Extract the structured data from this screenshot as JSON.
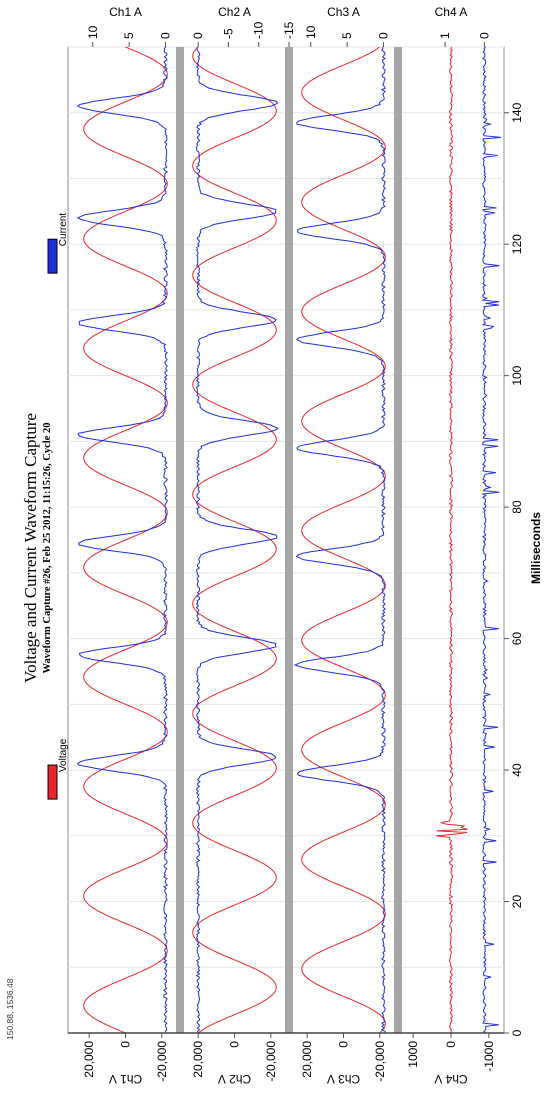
{
  "chart_data": {
    "type": "line",
    "title": "Voltage and Current Waveform Capture",
    "subtitle": "Waveform Capture #26, Feb 25 2012, 11:15:26,  Cycle 20",
    "corner_text": "150.88, 1536.48",
    "xlabel": "Milliseconds",
    "xlim": [
      0,
      150
    ],
    "x_ticks": [
      0,
      20,
      40,
      60,
      80,
      100,
      120,
      140
    ],
    "legend": {
      "placement": "top",
      "items": [
        {
          "name": "Voltage",
          "color": "#e8262c",
          "x_ms": 40
        },
        {
          "name": "Current",
          "color": "#1f2fd8",
          "x_ms": 120
        }
      ]
    },
    "colors": {
      "voltage": "#e8262c",
      "current": "#1f2fd8",
      "grid": "#e6e6e6",
      "separator": "#a6a6a6"
    },
    "panels": [
      {
        "name": "Ch1",
        "voltage_label": "Ch1 V",
        "current_label": "Ch1 A",
        "voltage_ylim": [
          -30000,
          30000
        ],
        "voltage_ticks": [
          20000,
          0,
          -20000
        ],
        "voltage_tick_labels": [
          "20,000",
          "0",
          "-20,000"
        ],
        "current_ylim": [
          -2,
          13
        ],
        "current_ticks": [
          10,
          5,
          0
        ],
        "current_tick_labels": [
          "10",
          "5",
          "0"
        ],
        "voltage_amplitude": 23000,
        "current_baseline": 0,
        "current_pulse_peak": 12,
        "current_pulse_centers": [
          41,
          57.5,
          74.5,
          91,
          108,
          124,
          141
        ]
      },
      {
        "name": "Ch2",
        "voltage_label": "Ch2 V",
        "current_label": "Ch2 A",
        "voltage_ylim": [
          -30000,
          30000
        ],
        "voltage_ticks": [
          20000,
          0,
          -20000
        ],
        "voltage_tick_labels": [
          "20,000",
          "0",
          "-20,000"
        ],
        "current_ylim": [
          -15,
          3
        ],
        "current_ticks": [
          0,
          -5,
          -10,
          -15
        ],
        "current_tick_labels": [
          "0",
          "-5",
          "-10",
          "-15"
        ],
        "voltage_amplitude": 23000,
        "current_baseline": 0,
        "current_pulse_peak": -13,
        "current_pulse_centers": [
          42,
          59,
          75.5,
          92,
          108.5,
          125,
          141.5
        ]
      },
      {
        "name": "Ch3",
        "voltage_label": "Ch3 V",
        "current_label": "Ch3 A",
        "voltage_ylim": [
          -30000,
          30000
        ],
        "voltage_ticks": [
          20000,
          0,
          -20000
        ],
        "voltage_tick_labels": [
          "20,000",
          "0",
          "-20,000"
        ],
        "current_ylim": [
          -2,
          13
        ],
        "current_ticks": [
          10,
          5,
          0
        ],
        "current_tick_labels": [
          "10",
          "5",
          "0"
        ],
        "voltage_amplitude": 23000,
        "current_baseline": 0,
        "current_pulse_peak": 12,
        "current_pulse_centers": [
          39.5,
          56,
          72.5,
          89,
          105.5,
          122,
          138.5
        ]
      },
      {
        "name": "Ch4",
        "voltage_label": "Ch4 V",
        "current_label": "Ch4 A",
        "voltage_ylim": [
          -1400,
          1400
        ],
        "voltage_ticks": [
          1000,
          0,
          -1000
        ],
        "voltage_tick_labels": [
          "1000",
          "0",
          "-1000"
        ],
        "current_ylim": [
          -0.5,
          2.2
        ],
        "current_ticks": [
          1,
          0
        ],
        "current_tick_labels": [
          "1",
          "0"
        ],
        "voltage_noise": 80,
        "current_baseline": 0,
        "current_spike": 0.4
      }
    ]
  }
}
